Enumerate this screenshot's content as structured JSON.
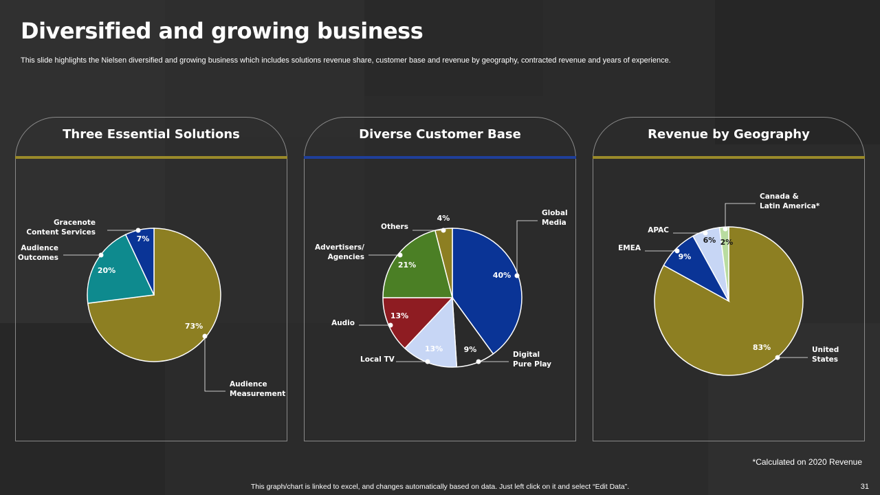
{
  "page": {
    "title": "Diversified and growing business",
    "subtitle": "This slide highlights the Nielsen diversified and growing business which includes solutions revenue share, customer base and revenue by geography, contracted revenue and years of experience.",
    "footnote": "*Calculated on 2020 Revenue",
    "bottom_note": "This graph/chart is linked to excel, and changes automatically based on data. Just left click on it and select “Edit Data”.",
    "page_number": "31"
  },
  "chart_data": [
    {
      "type": "pie",
      "title": "Three Essential Solutions",
      "accent_color": "#9a8a2a",
      "slices": [
        {
          "label": "Audience Measurement",
          "value": 73,
          "value_label": "73%",
          "color": "#8d7f22"
        },
        {
          "label": "Audience Outcomes",
          "value": 20,
          "value_label": "20%",
          "color": "#0e8a8e"
        },
        {
          "label": "Gracenote Content Services",
          "value": 7,
          "value_label": "7%",
          "color": "#0a3496"
        }
      ]
    },
    {
      "type": "pie",
      "title": "Diverse Customer Base",
      "accent_color": "#1f3f9a",
      "slices": [
        {
          "label": "Global Media",
          "value": 40,
          "value_label": "40%",
          "color": "#0a3496"
        },
        {
          "label": "Digital Pure Play",
          "value": 9,
          "value_label": "9%",
          "color": "#2a2a2a"
        },
        {
          "label": "Local TV",
          "value": 13,
          "value_label": "13%",
          "color": "#c7d6f5"
        },
        {
          "label": "Audio",
          "value": 13,
          "value_label": "13%",
          "color": "#8e1c22"
        },
        {
          "label": "Advertisers/ Agencies",
          "value": 21,
          "value_label": "21%",
          "color": "#4b7f25"
        },
        {
          "label": "Others",
          "value": 4,
          "value_label": "4%",
          "color": "#8d7f22"
        }
      ]
    },
    {
      "type": "pie",
      "title": "Revenue by Geography",
      "accent_color": "#9a8a2a",
      "slices": [
        {
          "label": "United States",
          "value": 83,
          "value_label": "83%",
          "color": "#8d7f22"
        },
        {
          "label": "EMEA",
          "value": 9,
          "value_label": "9%",
          "color": "#0a3496"
        },
        {
          "label": "APAC",
          "value": 6,
          "value_label": "6%",
          "color": "#c7d6f5"
        },
        {
          "label": "Canada & Latin America*",
          "value": 2,
          "value_label": "2%",
          "color": "#b9dca0"
        }
      ]
    }
  ]
}
